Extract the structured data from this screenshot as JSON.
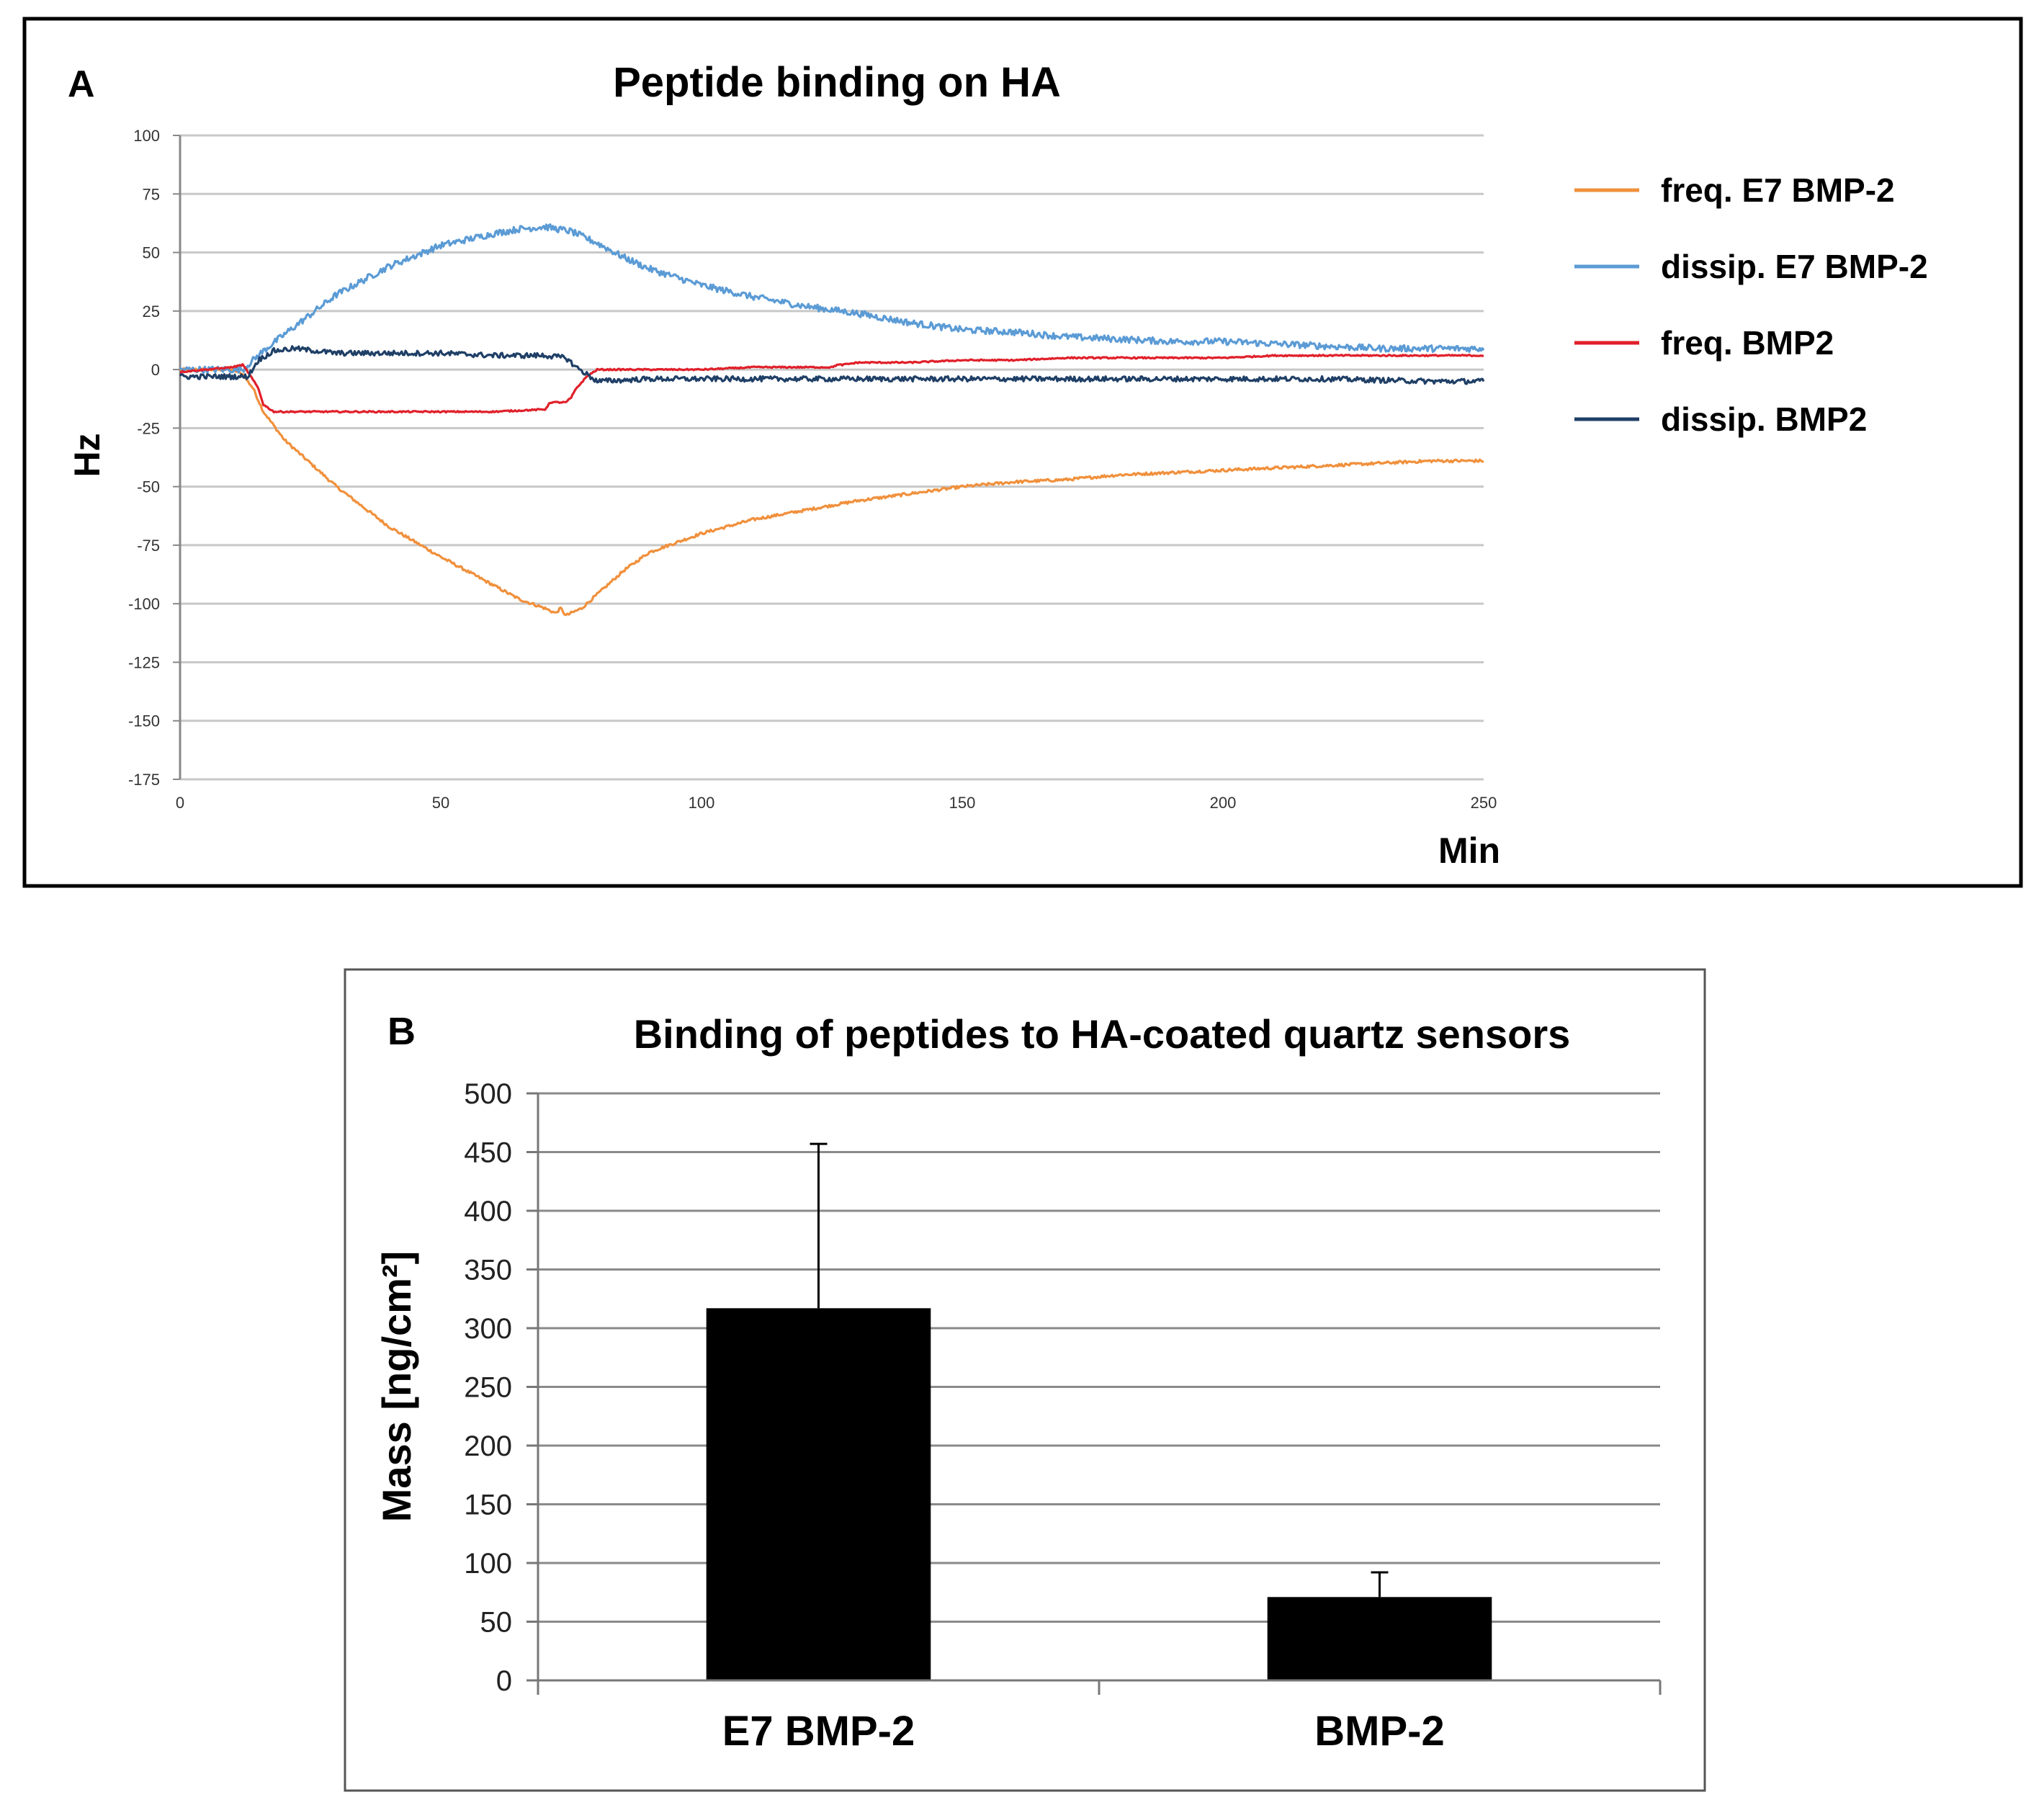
{
  "panel_a": {
    "letter": "A",
    "colors": {
      "freq_e7": "#F0903C",
      "dissip_e7": "#5B9BD5",
      "freq_bmp2": "#E0202A",
      "dissip_bmp2": "#1F3F66"
    },
    "chart_data": {
      "type": "line",
      "title": "Peptide binding on HA",
      "xlabel": "Min",
      "ylabel": "Hz",
      "xlim": [
        0,
        250
      ],
      "ylim": [
        -175,
        100
      ],
      "xticks": [
        "0",
        "50",
        "100",
        "150",
        "200",
        "250"
      ],
      "yticks": [
        "100",
        "75",
        "50",
        "25",
        "0",
        "-25",
        "-50",
        "-75",
        "-100",
        "-125",
        "-150",
        "-175"
      ],
      "grid": true,
      "legend_position": "right",
      "series": [
        {
          "name": "freq. E7 BMP-2",
          "color": "#F0903C",
          "noise": 0.6,
          "points": [
            [
              0,
              0
            ],
            [
              10,
              0
            ],
            [
              12,
              -2
            ],
            [
              14,
              -8
            ],
            [
              16,
              -18
            ],
            [
              20,
              -30
            ],
            [
              30,
              -50
            ],
            [
              40,
              -67
            ],
            [
              50,
              -80
            ],
            [
              60,
              -92
            ],
            [
              65,
              -98
            ],
            [
              70,
              -102
            ],
            [
              72,
              -104
            ],
            [
              73,
              -102
            ],
            [
              74,
              -105
            ],
            [
              75,
              -104
            ],
            [
              77,
              -102
            ],
            [
              80,
              -96
            ],
            [
              85,
              -86
            ],
            [
              90,
              -78
            ],
            [
              100,
              -70
            ],
            [
              110,
              -64
            ],
            [
              120,
              -60
            ],
            [
              130,
              -56
            ],
            [
              140,
              -53
            ],
            [
              150,
              -50
            ],
            [
              160,
              -48
            ],
            [
              170,
              -47
            ],
            [
              180,
              -45
            ],
            [
              190,
              -44
            ],
            [
              200,
              -43
            ],
            [
              210,
              -42
            ],
            [
              220,
              -41
            ],
            [
              230,
              -40
            ],
            [
              240,
              -39
            ],
            [
              250,
              -39
            ]
          ]
        },
        {
          "name": "dissip. E7 BMP-2",
          "color": "#5B9BD5",
          "noise": 1.4,
          "points": [
            [
              0,
              0
            ],
            [
              12,
              0
            ],
            [
              16,
              8
            ],
            [
              20,
              15
            ],
            [
              30,
              32
            ],
            [
              40,
              44
            ],
            [
              50,
              53
            ],
            [
              60,
              58
            ],
            [
              65,
              60
            ],
            [
              70,
              61
            ],
            [
              75,
              59
            ],
            [
              80,
              54
            ],
            [
              85,
              48
            ],
            [
              90,
              43
            ],
            [
              100,
              36
            ],
            [
              110,
              31
            ],
            [
              120,
              27
            ],
            [
              130,
              24
            ],
            [
              140,
              20
            ],
            [
              150,
              17
            ],
            [
              160,
              16
            ],
            [
              170,
              14
            ],
            [
              180,
              13
            ],
            [
              190,
              12
            ],
            [
              200,
              12
            ],
            [
              210,
              11
            ],
            [
              220,
              10
            ],
            [
              230,
              9
            ],
            [
              240,
              9
            ],
            [
              250,
              9
            ]
          ]
        },
        {
          "name": "freq. BMP2",
          "color": "#E0202A",
          "noise": 0.3,
          "points": [
            [
              0,
              -1
            ],
            [
              5,
              0
            ],
            [
              10,
              1
            ],
            [
              12,
              2
            ],
            [
              13,
              -1
            ],
            [
              15,
              -8
            ],
            [
              16,
              -15
            ],
            [
              18,
              -18
            ],
            [
              30,
              -18
            ],
            [
              50,
              -18
            ],
            [
              60,
              -18
            ],
            [
              70,
              -17
            ],
            [
              71,
              -14
            ],
            [
              72,
              -14
            ],
            [
              74,
              -14
            ],
            [
              75,
              -12
            ],
            [
              76,
              -8
            ],
            [
              78,
              -3
            ],
            [
              80,
              0
            ],
            [
              90,
              0
            ],
            [
              100,
              0
            ],
            [
              110,
              1
            ],
            [
              125,
              1
            ],
            [
              126,
              2
            ],
            [
              127,
              2
            ],
            [
              130,
              3
            ],
            [
              140,
              3
            ],
            [
              150,
              4
            ],
            [
              160,
              4
            ],
            [
              170,
              5
            ],
            [
              180,
              5
            ],
            [
              190,
              5
            ],
            [
              200,
              5
            ],
            [
              210,
              6
            ],
            [
              220,
              6
            ],
            [
              230,
              6
            ],
            [
              240,
              6
            ],
            [
              250,
              6
            ]
          ]
        },
        {
          "name": "dissip. BMP2",
          "color": "#1F3F66",
          "noise": 1.1,
          "points": [
            [
              0,
              -3
            ],
            [
              5,
              -3
            ],
            [
              10,
              -3
            ],
            [
              13,
              -3
            ],
            [
              15,
              4
            ],
            [
              18,
              8
            ],
            [
              22,
              9
            ],
            [
              30,
              7
            ],
            [
              40,
              7
            ],
            [
              50,
              7
            ],
            [
              60,
              6
            ],
            [
              70,
              6
            ],
            [
              74,
              5
            ],
            [
              76,
              1
            ],
            [
              78,
              -2
            ],
            [
              80,
              -5
            ],
            [
              90,
              -4
            ],
            [
              100,
              -4
            ],
            [
              120,
              -4
            ],
            [
              140,
              -4
            ],
            [
              160,
              -4
            ],
            [
              180,
              -4
            ],
            [
              200,
              -4
            ],
            [
              220,
              -4
            ],
            [
              240,
              -5
            ],
            [
              250,
              -5
            ]
          ]
        }
      ]
    }
  },
  "panel_b": {
    "letter": "B",
    "chart_data": {
      "type": "bar",
      "title": "Binding of peptides to HA-coated quartz sensors",
      "ylabel": "Mass [ng/cm²]",
      "categories": [
        "E7 BMP-2",
        "BMP-2"
      ],
      "values": [
        317,
        71
      ],
      "error_upper": [
        457,
        92
      ],
      "ylim": [
        0,
        500
      ],
      "yticks": [
        "0",
        "50",
        "100",
        "150",
        "200",
        "250",
        "300",
        "350",
        "400",
        "450",
        "500"
      ],
      "grid": true,
      "bar_color": "#000000"
    }
  }
}
